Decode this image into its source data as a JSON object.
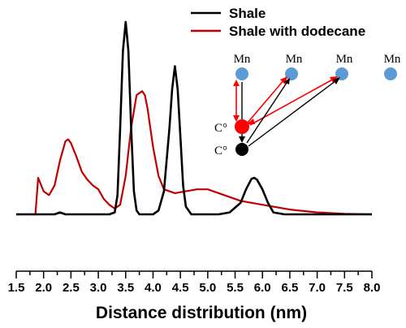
{
  "chart_data": {
    "type": "line",
    "xlabel": "Distance distribution (nm)",
    "ylabel": "",
    "xlim": [
      1.5,
      8.0
    ],
    "xticks": [
      "1.5",
      "2.0",
      "2.5",
      "3.0",
      "3.5",
      "4.0",
      "4.5",
      "5.0",
      "5.5",
      "6.0",
      "6.5",
      "7.0",
      "7.5",
      "8.0"
    ],
    "grid": false,
    "legend_position": "top-right",
    "series": [
      {
        "name": "Shale",
        "color": "#000000",
        "x": [
          1.5,
          2.2,
          2.3,
          2.4,
          3.2,
          3.3,
          3.35,
          3.4,
          3.45,
          3.5,
          3.55,
          3.6,
          3.65,
          3.7,
          3.75,
          3.8,
          4.0,
          4.1,
          4.2,
          4.3,
          4.35,
          4.4,
          4.45,
          4.5,
          4.55,
          4.6,
          4.7,
          5.2,
          5.4,
          5.6,
          5.7,
          5.8,
          5.85,
          5.9,
          6.0,
          6.1,
          6.2,
          6.4,
          8.0
        ],
        "values": [
          0,
          0,
          0.01,
          0,
          0,
          0.01,
          0.1,
          0.45,
          0.85,
          1.0,
          0.85,
          0.45,
          0.12,
          0.02,
          0,
          0,
          0,
          0.02,
          0.12,
          0.45,
          0.65,
          0.77,
          0.65,
          0.4,
          0.15,
          0.04,
          0,
          0,
          0.01,
          0.06,
          0.13,
          0.185,
          0.19,
          0.18,
          0.13,
          0.06,
          0.01,
          0,
          0
        ]
      },
      {
        "name": "Shale with dodecane",
        "color": "#c00000",
        "x": [
          1.5,
          1.85,
          1.9,
          2.0,
          2.1,
          2.2,
          2.3,
          2.4,
          2.45,
          2.5,
          2.6,
          2.7,
          2.8,
          2.9,
          3.0,
          3.1,
          3.2,
          3.3,
          3.4,
          3.5,
          3.6,
          3.7,
          3.8,
          3.85,
          3.9,
          4.0,
          4.1,
          4.2,
          4.4,
          4.6,
          4.8,
          5.0,
          5.2,
          5.4,
          5.6,
          6.0,
          6.5,
          7.0,
          7.5,
          8.0
        ],
        "values": [
          0,
          0,
          0.19,
          0.12,
          0.1,
          0.15,
          0.28,
          0.38,
          0.39,
          0.37,
          0.3,
          0.22,
          0.18,
          0.15,
          0.13,
          0.08,
          0.05,
          0.03,
          0.05,
          0.2,
          0.45,
          0.62,
          0.64,
          0.62,
          0.55,
          0.35,
          0.2,
          0.13,
          0.11,
          0.12,
          0.13,
          0.13,
          0.11,
          0.09,
          0.07,
          0.05,
          0.025,
          0.01,
          0.003,
          0
        ]
      }
    ],
    "inset": {
      "top_labels": [
        "Mn",
        "Mn",
        "Mn",
        "Mn"
      ],
      "side_labels": [
        "C°",
        "C°"
      ],
      "top_dot_color": "#5b9bd5",
      "mid_dot_color": "#ff0000",
      "low_dot_color": "#000000"
    }
  }
}
